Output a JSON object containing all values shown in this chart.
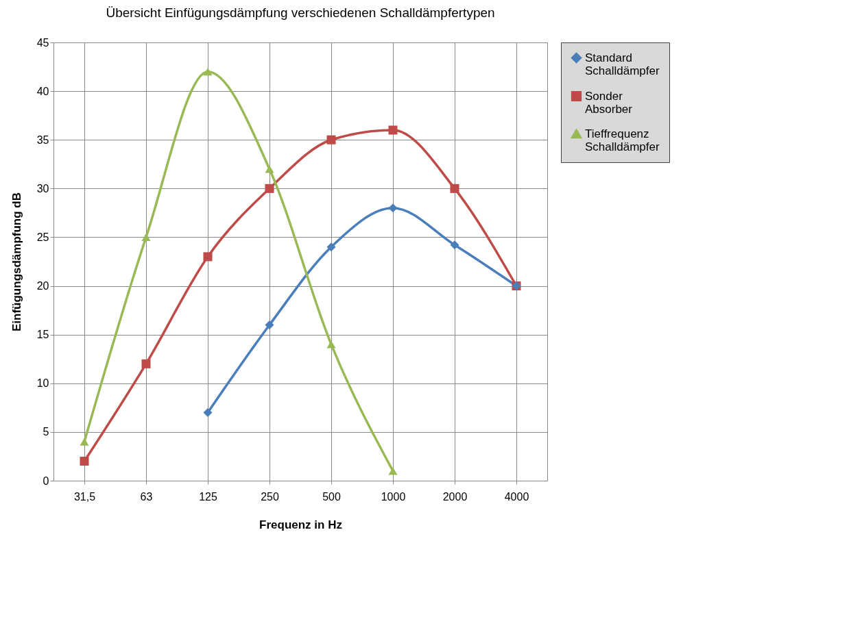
{
  "chart_data": {
    "type": "line",
    "title": "Übersicht Einfügungsdämpfung  verschiedenen Schalldämpfertypen",
    "xlabel": "Frequenz in Hz",
    "ylabel": "Einfügungsdämpfung dB",
    "categories": [
      "31,5",
      "63",
      "125",
      "250",
      "500",
      "1000",
      "2000",
      "4000"
    ],
    "ylim": [
      0,
      45
    ],
    "yticks": [
      0,
      5,
      10,
      15,
      20,
      25,
      30,
      35,
      40,
      45
    ],
    "grid": true,
    "legend": "right",
    "series": [
      {
        "name": "Standard Schalldämpfer",
        "color": "#4a7ebb",
        "marker": "diamond",
        "values": [
          null,
          null,
          7,
          16,
          24,
          28,
          24.2,
          20
        ]
      },
      {
        "name": "Sonder Absorber",
        "color": "#be4b48",
        "marker": "square",
        "values": [
          2,
          12,
          23,
          30,
          35,
          36,
          30,
          20
        ]
      },
      {
        "name": "Tieffrequenz Schalldämpfer",
        "color": "#98b954",
        "marker": "triangle",
        "values": [
          4,
          25,
          42,
          32,
          14,
          1,
          null,
          null
        ]
      }
    ]
  }
}
